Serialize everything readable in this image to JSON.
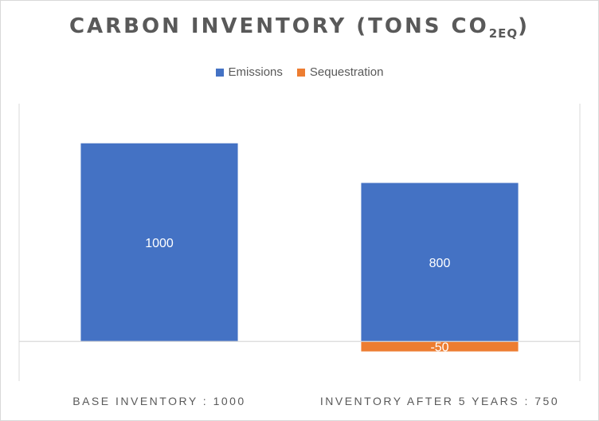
{
  "chart_data": {
    "type": "bar",
    "stacked": true,
    "title_main": "CARBON INVENTORY (TONS CO",
    "title_sub": "2EQ",
    "title_close": ")",
    "categories": [
      "BASE INVENTORY : 1000",
      "INVENTORY AFTER 5 YEARS : 750"
    ],
    "series": [
      {
        "name": "Emissions",
        "color": "#4472c4",
        "values": [
          1000,
          800
        ]
      },
      {
        "name": "Sequestration",
        "color": "#ed7d31",
        "values": [
          0,
          -50
        ]
      }
    ],
    "data_labels": [
      {
        "series": 0,
        "index": 0,
        "text": "1000"
      },
      {
        "series": 0,
        "index": 1,
        "text": "800"
      },
      {
        "series": 1,
        "index": 1,
        "text": "-50"
      }
    ],
    "ylim": [
      -200,
      1200
    ],
    "legend_position": "top",
    "grid": false
  }
}
